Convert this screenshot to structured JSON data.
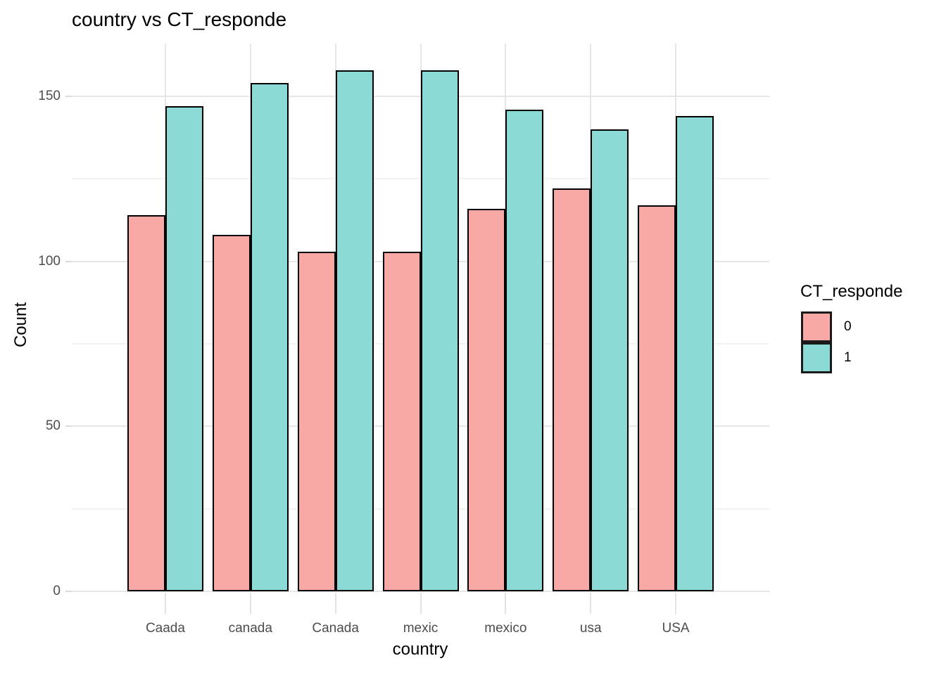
{
  "chart_data": {
    "type": "bar",
    "title": "country vs CT_responde",
    "xlabel": "country",
    "ylabel": "Count",
    "categories": [
      "Caada",
      "canada",
      "Canada",
      "mexic",
      "mexico",
      "usa",
      "USA"
    ],
    "series": [
      {
        "name": "0",
        "color": "#f9a9a5",
        "values": [
          114,
          108,
          103,
          103,
          116,
          122,
          117
        ]
      },
      {
        "name": "1",
        "color": "#8cdad6",
        "values": [
          147,
          154,
          158,
          158,
          146,
          140,
          144
        ]
      }
    ],
    "legend": {
      "title": "CT_responde",
      "position": "right"
    },
    "y_axis": {
      "ticks": [
        0,
        50,
        100,
        150
      ],
      "minor_gridlines": [
        25,
        75,
        125
      ],
      "range": [
        0,
        166
      ]
    },
    "grid": true,
    "bar_border_color": "#000000",
    "colors": {
      "major_grid": "#e6e6e6",
      "minor_grid": "#f2f2f2",
      "tick_label": "#4d4d4d"
    }
  }
}
